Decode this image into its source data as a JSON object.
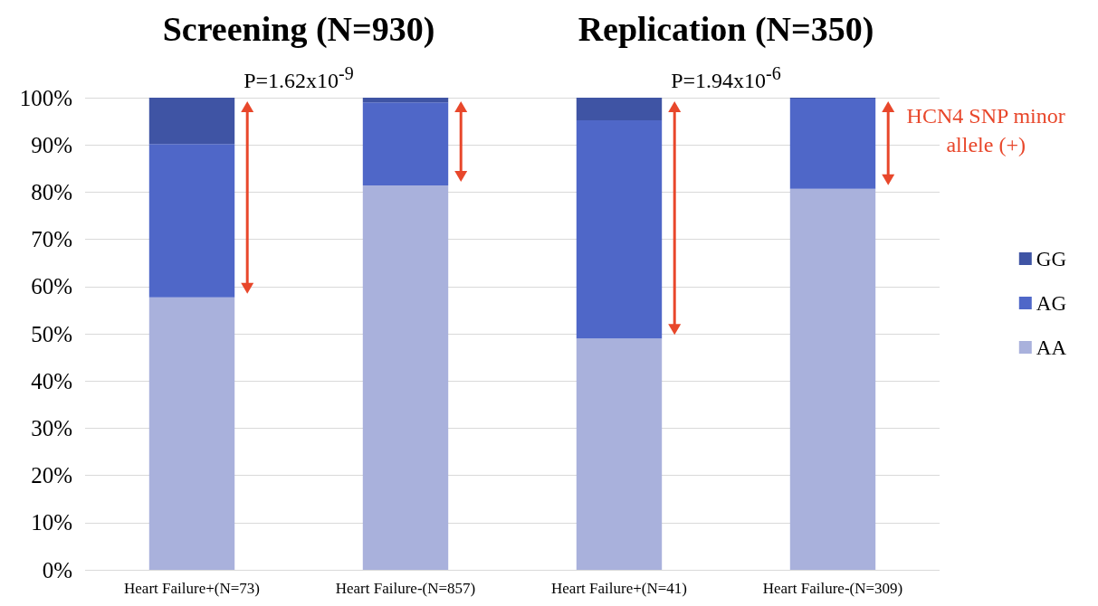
{
  "chart_data": {
    "type": "bar",
    "stacked": true,
    "categories": [
      "Heart Failure+(N=73)",
      "Heart Failure-(N=857)",
      "Heart Failure+(N=41)",
      "Heart Failure-(N=309)"
    ],
    "series": [
      {
        "name": "AA",
        "color": "#a9b1dc",
        "values": [
          57.7,
          81.4,
          49.0,
          80.7
        ]
      },
      {
        "name": "AG",
        "color": "#4f67c8",
        "values": [
          32.5,
          17.6,
          46.2,
          19.1
        ]
      },
      {
        "name": "GG",
        "color": "#3f54a4",
        "values": [
          9.8,
          1.0,
          4.8,
          0.2
        ]
      }
    ],
    "ylim": [
      0,
      100
    ],
    "yticks": [
      {
        "value": 0,
        "label": "0%"
      },
      {
        "value": 10,
        "label": "10%"
      },
      {
        "value": 20,
        "label": "20%"
      },
      {
        "value": 30,
        "label": "30%"
      },
      {
        "value": 40,
        "label": "40%"
      },
      {
        "value": 50,
        "label": "50%"
      },
      {
        "value": 60,
        "label": "60%"
      },
      {
        "value": 70,
        "label": "70%"
      },
      {
        "value": 80,
        "label": "80%"
      },
      {
        "value": 90,
        "label": "90%"
      },
      {
        "value": 100,
        "label": "100%"
      }
    ],
    "grid": "y",
    "legend": "right",
    "annotations": [
      "Screening (N=930)",
      "Replication (N=350)",
      "P=1.62x10$^{-9}$",
      "P=1.94x10$^{-6}$",
      "HCN4 SNP minor allele (+)"
    ]
  }
}
